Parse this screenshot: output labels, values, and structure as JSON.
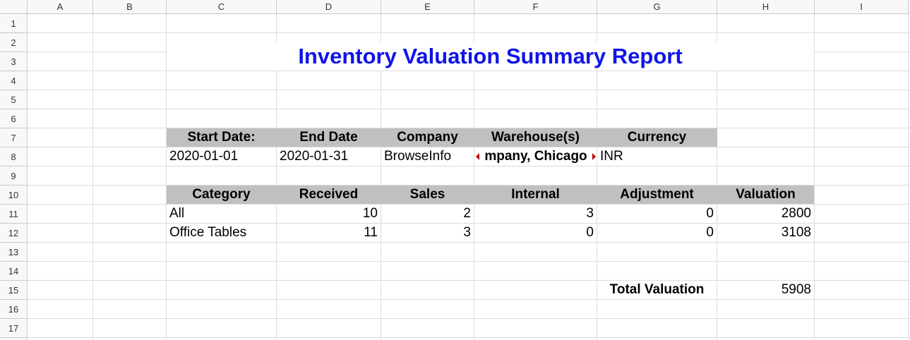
{
  "columns": [
    "A",
    "B",
    "C",
    "D",
    "E",
    "F",
    "G",
    "H",
    "I"
  ],
  "rows": [
    "1",
    "2",
    "3",
    "4",
    "5",
    "6",
    "7",
    "8",
    "9",
    "10",
    "11",
    "12",
    "13",
    "14",
    "15",
    "16",
    "17"
  ],
  "report": {
    "title": "Inventory Valuation Summary Report",
    "params_headers": [
      "Start Date:",
      "End Date",
      "Company",
      "Warehouse(s)",
      "Currency"
    ],
    "params_values": [
      "2020-01-01",
      "2020-01-31",
      "BrowseInfo",
      "mpany, Chicago",
      "INR"
    ],
    "table_headers": [
      "Category",
      "Received",
      "Sales",
      "Internal",
      "Adjustment",
      "Valuation"
    ],
    "table_rows": [
      [
        "All",
        "10",
        "2",
        "3",
        "0",
        "2800"
      ],
      [
        "Office Tables",
        "11",
        "3",
        "0",
        "0",
        "3108"
      ]
    ],
    "total_label": "Total Valuation",
    "total_value": "5908"
  },
  "colors": {
    "title": "#0f14e8",
    "header_fill": "#c0c0c0",
    "overflow_arrow": "#c00000"
  }
}
